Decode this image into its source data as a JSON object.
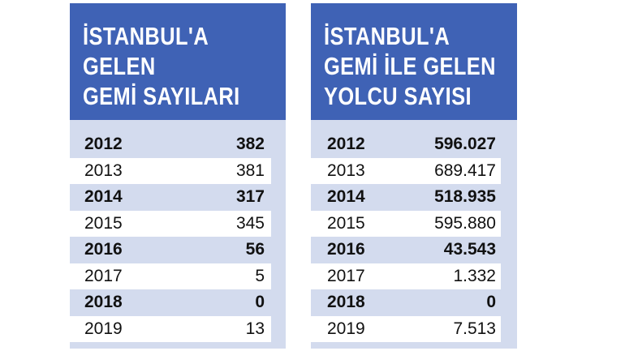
{
  "chart_data": [
    {
      "type": "table",
      "title": "İSTANBUL'A GELEN GEMİ SAYILARI",
      "title_lines": [
        "İSTANBUL'A",
        "GELEN",
        "GEMİ SAYILARI"
      ],
      "rows": [
        {
          "year": "2012",
          "value": "382"
        },
        {
          "year": "2013",
          "value": "381"
        },
        {
          "year": "2014",
          "value": "317"
        },
        {
          "year": "2015",
          "value": "345"
        },
        {
          "year": "2016",
          "value": "56"
        },
        {
          "year": "2017",
          "value": "5"
        },
        {
          "year": "2018",
          "value": "0"
        },
        {
          "year": "2019",
          "value": "13"
        }
      ]
    },
    {
      "type": "table",
      "title": "İSTANBUL'A GEMİ İLE GELEN YOLCU SAYISI",
      "title_lines": [
        "İSTANBUL'A",
        "GEMİ İLE GELEN",
        "YOLCU SAYISI"
      ],
      "rows": [
        {
          "year": "2012",
          "value": "596.027"
        },
        {
          "year": "2013",
          "value": "689.417"
        },
        {
          "year": "2014",
          "value": "518.935"
        },
        {
          "year": "2015",
          "value": "595.880"
        },
        {
          "year": "2016",
          "value": "43.543"
        },
        {
          "year": "2017",
          "value": "1.332"
        },
        {
          "year": "2018",
          "value": "0"
        },
        {
          "year": "2019",
          "value": "7.513"
        }
      ]
    }
  ],
  "colors": {
    "header": "#3f62b5",
    "panel": "#d3dbee",
    "alt_row": "#ffffff",
    "text": "#111111"
  }
}
